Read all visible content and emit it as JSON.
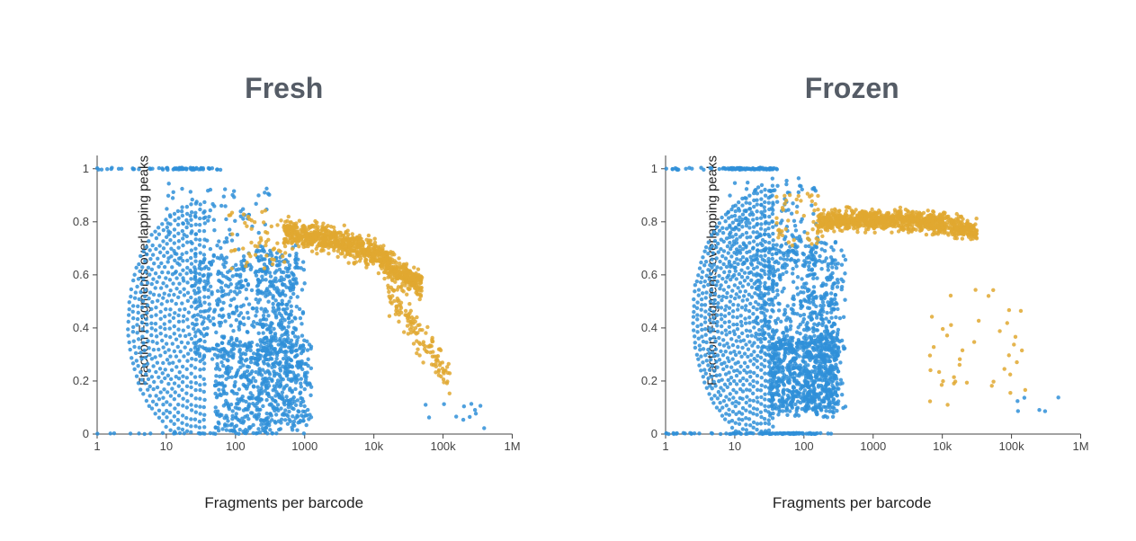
{
  "layout": {
    "panels": [
      "fresh",
      "frozen"
    ],
    "title_color": "#555c66",
    "title_fontsize": 32,
    "title_fontweight": 700,
    "xlabel_fontsize": 17,
    "ylabel_fontsize": 15,
    "background": "#ffffff"
  },
  "axes": {
    "x": {
      "label": "Fragments per barcode",
      "scale": "log",
      "ticks": [
        1,
        10,
        100,
        1000,
        10000,
        100000,
        1000000
      ],
      "tick_labels": [
        "1",
        "10",
        "100",
        "1000",
        "10k",
        "100k",
        "1M"
      ],
      "range_log10": [
        0,
        6
      ]
    },
    "y": {
      "label": "Fraction Fragments overlapping peaks",
      "scale": "linear",
      "ticks": [
        0,
        0.2,
        0.4,
        0.6,
        0.8,
        1
      ],
      "tick_labels": [
        "0",
        "0.2",
        "0.4",
        "0.6",
        "0.8",
        "1"
      ],
      "range": [
        0,
        1.05
      ]
    }
  },
  "series_colors": {
    "blue": "#2f8fd8",
    "yellow": "#e0a830"
  },
  "marker": {
    "radius": 2.2,
    "opacity": 0.85
  },
  "fresh": {
    "title": "Fresh",
    "generators": {
      "blue_baseline_zero": {
        "color": "blue",
        "n": 55,
        "x_log10": [
          0,
          2.6
        ],
        "y_center": 0.0,
        "y_jitter": 0.004
      },
      "blue_topline_one": {
        "color": "blue",
        "n": 35,
        "x_log10": [
          0,
          1.8
        ],
        "y_center": 1.0,
        "y_jitter": 0.004
      },
      "blue_topline_dense": {
        "color": "blue",
        "n": 30,
        "x_log10": [
          1.0,
          1.7
        ],
        "y_center": 1.0,
        "y_jitter": 0.003
      },
      "blue_arcs": {
        "color": "blue",
        "arcs": true,
        "arc_count": 16,
        "arc_x_center_log10": 1.55,
        "arc_x_radius_log10": 1.1,
        "arc_y_center": 0.42,
        "arc_y_radius": 0.45,
        "points_per_arc": 55,
        "arc_shrink": 0.06
      },
      "blue_dense_low": {
        "color": "blue",
        "n": 550,
        "x_log10": [
          1.7,
          3.1
        ],
        "y_range": [
          0.0,
          0.35
        ],
        "jitter": 0.15
      },
      "blue_dense_mid": {
        "color": "blue",
        "n": 420,
        "x_log10": [
          1.4,
          3.0
        ],
        "y_range": [
          0.28,
          0.68
        ],
        "jitter": 0.18
      },
      "blue_scatter_high": {
        "color": "blue",
        "n": 120,
        "x_log10": [
          1.0,
          2.5
        ],
        "y_range": [
          0.55,
          0.92
        ],
        "jitter": 0.2
      },
      "blue_mid_vertical": {
        "color": "blue",
        "n": 220,
        "x_log10": [
          2.3,
          2.9
        ],
        "y_range": [
          0.05,
          0.72
        ],
        "jitter": 0.1
      },
      "blue_far_right": {
        "color": "blue",
        "n": 12,
        "x_log10": [
          4.7,
          5.6
        ],
        "y_range": [
          0.02,
          0.12
        ],
        "jitter": 0.03
      },
      "yellow_band": {
        "color": "yellow",
        "n": 900,
        "x_log10": [
          2.7,
          4.7
        ],
        "y_center_line": [
          [
            2.7,
            0.76
          ],
          [
            3.2,
            0.74
          ],
          [
            3.6,
            0.72
          ],
          [
            4.0,
            0.68
          ],
          [
            4.3,
            0.62
          ],
          [
            4.7,
            0.56
          ]
        ],
        "y_spread": 0.085
      },
      "yellow_tail": {
        "color": "yellow",
        "n": 140,
        "x_log10": [
          4.2,
          5.1
        ],
        "y_center_line": [
          [
            4.2,
            0.55
          ],
          [
            4.6,
            0.4
          ],
          [
            5.1,
            0.2
          ]
        ],
        "y_spread": 0.12
      },
      "yellow_left_sparse": {
        "color": "yellow",
        "n": 55,
        "x_log10": [
          1.9,
          2.8
        ],
        "y_range": [
          0.62,
          0.84
        ],
        "jitter": 0.1
      }
    }
  },
  "frozen": {
    "title": "Frozen",
    "generators": {
      "blue_baseline_zero": {
        "color": "blue",
        "n": 85,
        "x_log10": [
          0,
          2.4
        ],
        "y_center": 0.0,
        "y_jitter": 0.004
      },
      "blue_topline_one": {
        "color": "blue",
        "n": 45,
        "x_log10": [
          0,
          1.7
        ],
        "y_center": 1.0,
        "y_jitter": 0.004
      },
      "blue_topline_dense": {
        "color": "blue",
        "n": 60,
        "x_log10": [
          0.9,
          1.55
        ],
        "y_center": 1.0,
        "y_jitter": 0.003
      },
      "blue_arcs": {
        "color": "blue",
        "arcs": true,
        "arc_count": 20,
        "arc_x_center_log10": 1.55,
        "arc_x_radius_log10": 1.15,
        "arc_y_center": 0.44,
        "arc_y_radius": 0.48,
        "points_per_arc": 65,
        "arc_shrink": 0.05
      },
      "blue_dense_low": {
        "color": "blue",
        "n": 680,
        "x_log10": [
          1.5,
          2.5
        ],
        "y_range": [
          0.08,
          0.36
        ],
        "jitter": 0.14
      },
      "blue_dense_mid": {
        "color": "blue",
        "n": 380,
        "x_log10": [
          1.3,
          2.5
        ],
        "y_range": [
          0.3,
          0.72
        ],
        "jitter": 0.18
      },
      "blue_scatter_high": {
        "color": "blue",
        "n": 160,
        "x_log10": [
          0.9,
          2.2
        ],
        "y_range": [
          0.6,
          0.95
        ],
        "jitter": 0.18
      },
      "blue_mid_vertical": {
        "color": "blue",
        "n": 180,
        "x_log10": [
          2.0,
          2.6
        ],
        "y_range": [
          0.08,
          0.68
        ],
        "jitter": 0.1
      },
      "blue_baseline_dense": {
        "color": "blue",
        "n": 120,
        "x_log10": [
          1.3,
          2.2
        ],
        "y_center": 0.0,
        "y_jitter": 0.004
      },
      "blue_far_right": {
        "color": "blue",
        "n": 6,
        "x_log10": [
          5.0,
          5.9
        ],
        "y_range": [
          0.08,
          0.14
        ],
        "jitter": 0.02
      },
      "yellow_band": {
        "color": "yellow",
        "n": 1000,
        "x_log10": [
          2.2,
          4.5
        ],
        "y_center_line": [
          [
            2.2,
            0.8
          ],
          [
            2.8,
            0.81
          ],
          [
            3.3,
            0.81
          ],
          [
            3.8,
            0.8
          ],
          [
            4.2,
            0.78
          ],
          [
            4.5,
            0.76
          ]
        ],
        "y_spread": 0.065
      },
      "yellow_right_sparse": {
        "color": "yellow",
        "n": 40,
        "x_log10": [
          3.8,
          5.2
        ],
        "y_range": [
          0.1,
          0.55
        ],
        "jitter": 0.15
      },
      "yellow_left_sparse": {
        "color": "yellow",
        "n": 50,
        "x_log10": [
          1.6,
          2.3
        ],
        "y_range": [
          0.7,
          0.92
        ],
        "jitter": 0.08
      }
    }
  }
}
